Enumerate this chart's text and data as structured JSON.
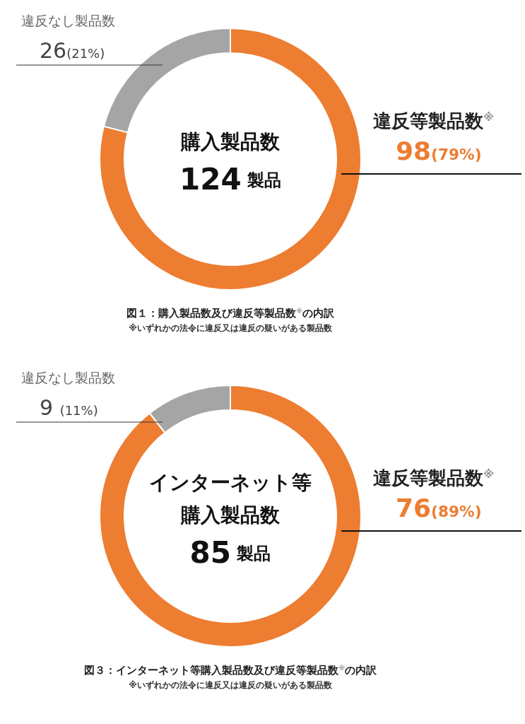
{
  "chart_data": [
    {
      "type": "donut",
      "title": "図１：購入製品数及び違反等製品数$^{※}$の内訳",
      "categories": [
        "違反等製品数$^{※}$",
        "違反なし製品数"
      ],
      "values": [
        98,
        26
      ],
      "colors": [
        "#ed7d31",
        "#a5a5a5"
      ],
      "value_labels": [
        "98(79%)",
        "26(21%)"
      ],
      "annotations": [
        "購入製品数",
        "124 製品",
        "※いずれかの法令に違反又は違反の疑いがある製品数"
      ]
    },
    {
      "type": "donut",
      "title": "図３：インターネット等購入製品数及び違反等製品数$^{※}$の内訳",
      "categories": [
        "違反等製品数$^{※}$",
        "違反なし製品数"
      ],
      "values": [
        76,
        9
      ],
      "colors": [
        "#ed7d31",
        "#a5a5a5"
      ],
      "value_labels": [
        "76(89%)",
        "9 (11%)"
      ],
      "annotations": [
        "インターネット等",
        "購入製品数",
        "85 製品",
        "※いずれかの法令に違反又は違反の疑いがある製品数"
      ]
    }
  ]
}
